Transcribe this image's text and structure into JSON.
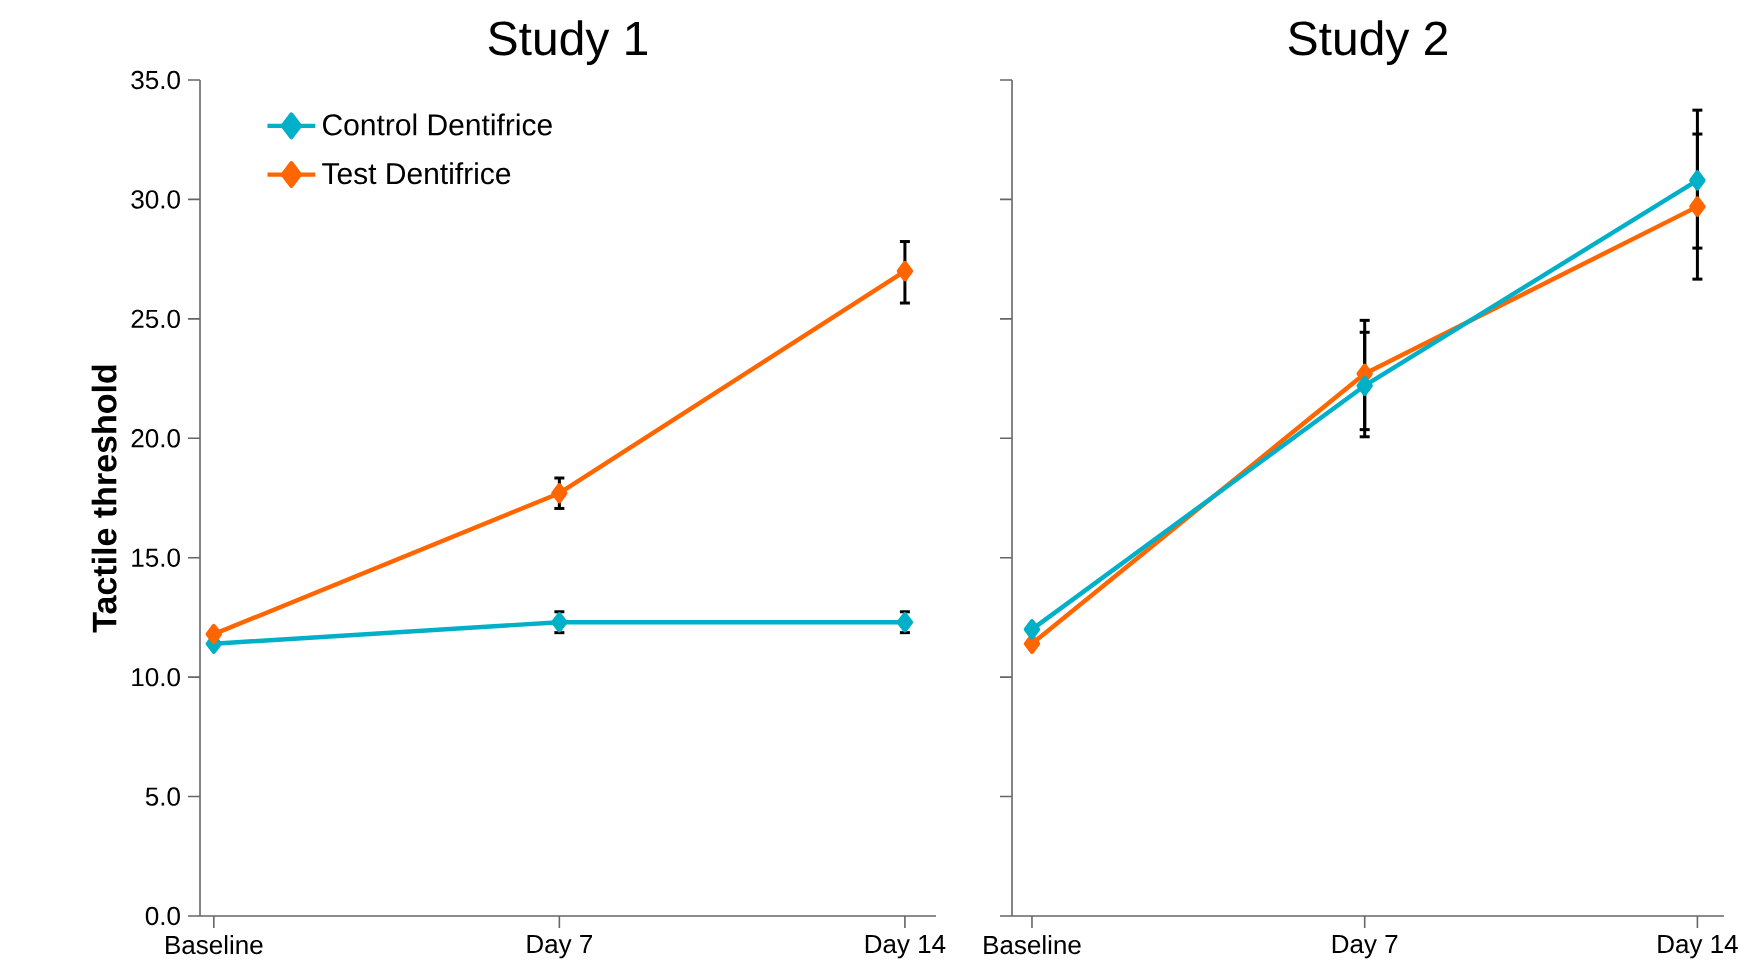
{
  "chart_data": [
    {
      "type": "line",
      "title": "Study 1",
      "ylabel": "Tactile threshold",
      "categories": [
        "Baseline",
        "Day 7",
        "Day 14"
      ],
      "ylim": [
        0,
        35
      ],
      "yticks": [
        {
          "value": 0,
          "label": "0.0"
        },
        {
          "value": 5,
          "label": "5.0"
        },
        {
          "value": 10,
          "label": "10.0"
        },
        {
          "value": 15,
          "label": "15.0"
        },
        {
          "value": 20,
          "label": "20.0"
        },
        {
          "value": 25,
          "label": "25.0"
        },
        {
          "value": 30,
          "label": "30.0"
        },
        {
          "value": 35,
          "label": "35.0"
        }
      ],
      "marker": "diamond",
      "legend": "top left",
      "series": [
        {
          "name": "Control Dentifrice",
          "color": "#00b0c8",
          "values": [
            11.4,
            12.3,
            12.3
          ],
          "errors": [
            null,
            [
              11.8,
              12.8
            ],
            [
              11.8,
              12.8
            ]
          ]
        },
        {
          "name": "Test Dentifrice",
          "color": "#ff6600",
          "values": [
            11.8,
            17.7,
            27.0
          ],
          "errors": [
            null,
            [
              17.0,
              18.4
            ],
            [
              25.6,
              28.3
            ]
          ]
        }
      ]
    },
    {
      "type": "line",
      "title": "Study 2",
      "categories": [
        "Baseline",
        "Day 7",
        "Day 14"
      ],
      "ylim": [
        0,
        35
      ],
      "yticks": [
        0,
        5,
        10,
        15,
        20,
        25,
        30,
        35
      ],
      "tick_labels": "x",
      "marker": "diamond",
      "series": [
        {
          "color": "#ff6600",
          "values": [
            11.4,
            22.7,
            29.7
          ],
          "errors": [
            null,
            [
              20.3,
              25.0
            ],
            [
              26.6,
              32.8
            ]
          ]
        },
        {
          "color": "#00b0c8",
          "values": [
            12.0,
            22.2,
            30.8
          ],
          "errors": [
            null,
            [
              20.0,
              24.5
            ],
            [
              27.9,
              33.8
            ]
          ]
        }
      ]
    }
  ]
}
